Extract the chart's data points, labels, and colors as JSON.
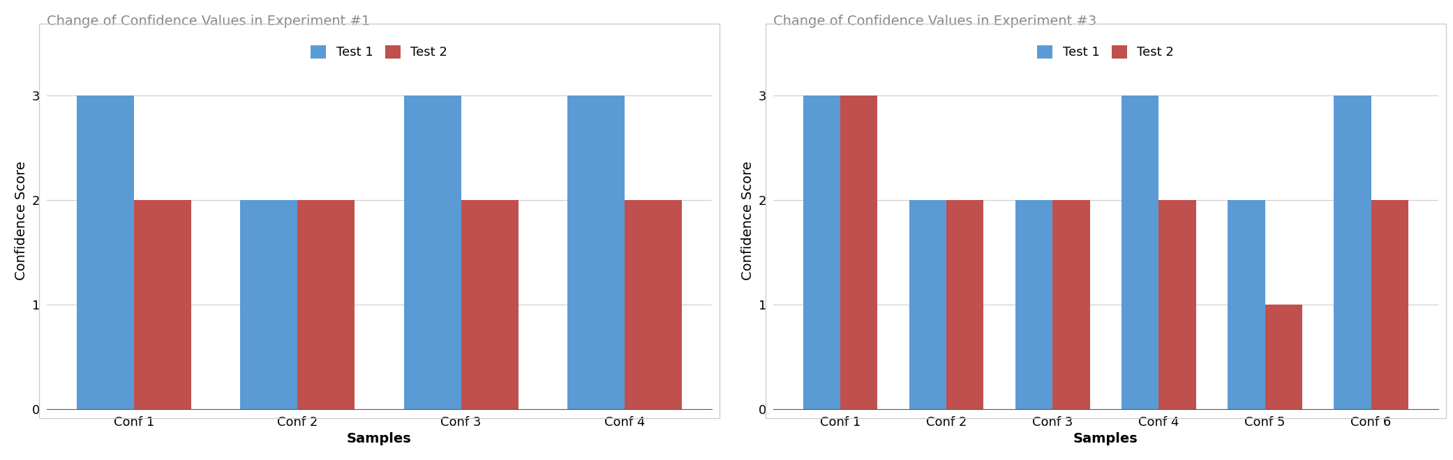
{
  "exp1": {
    "title": "Change of Confidence Values in Experiment #1",
    "categories": [
      "Conf 1",
      "Conf 2",
      "Conf 3",
      "Conf 4"
    ],
    "test1": [
      3,
      2,
      3,
      3
    ],
    "test2": [
      2,
      2,
      2,
      2
    ]
  },
  "exp3": {
    "title": "Change of Confidence Values in Experiment #3",
    "categories": [
      "Conf 1",
      "Conf 2",
      "Conf 3",
      "Conf 4",
      "Conf 5",
      "Conf 6"
    ],
    "test1": [
      3,
      2,
      2,
      3,
      2,
      3
    ],
    "test2": [
      3,
      2,
      2,
      2,
      1,
      2
    ]
  },
  "xlabel": "Samples",
  "ylabel": "Confidence Score",
  "ylim": [
    0,
    3.6
  ],
  "yticks": [
    0,
    1,
    2,
    3
  ],
  "color_test1": "#5B9BD5",
  "color_test2": "#C0504D",
  "legend_test1": "Test 1",
  "legend_test2": "Test 2",
  "title_color": "#888888",
  "bar_width": 0.35,
  "figsize": [
    20.82,
    6.6
  ],
  "dpi": 100,
  "background_color": "#FFFFFF",
  "panel_background": "#FFFFFF",
  "grid_color": "#CCCCCC",
  "tick_label_fontsize": 13,
  "axis_label_fontsize": 14,
  "title_fontsize": 14,
  "legend_fontsize": 13,
  "border_color": "#CCCCCC",
  "border_linewidth": 1.0
}
